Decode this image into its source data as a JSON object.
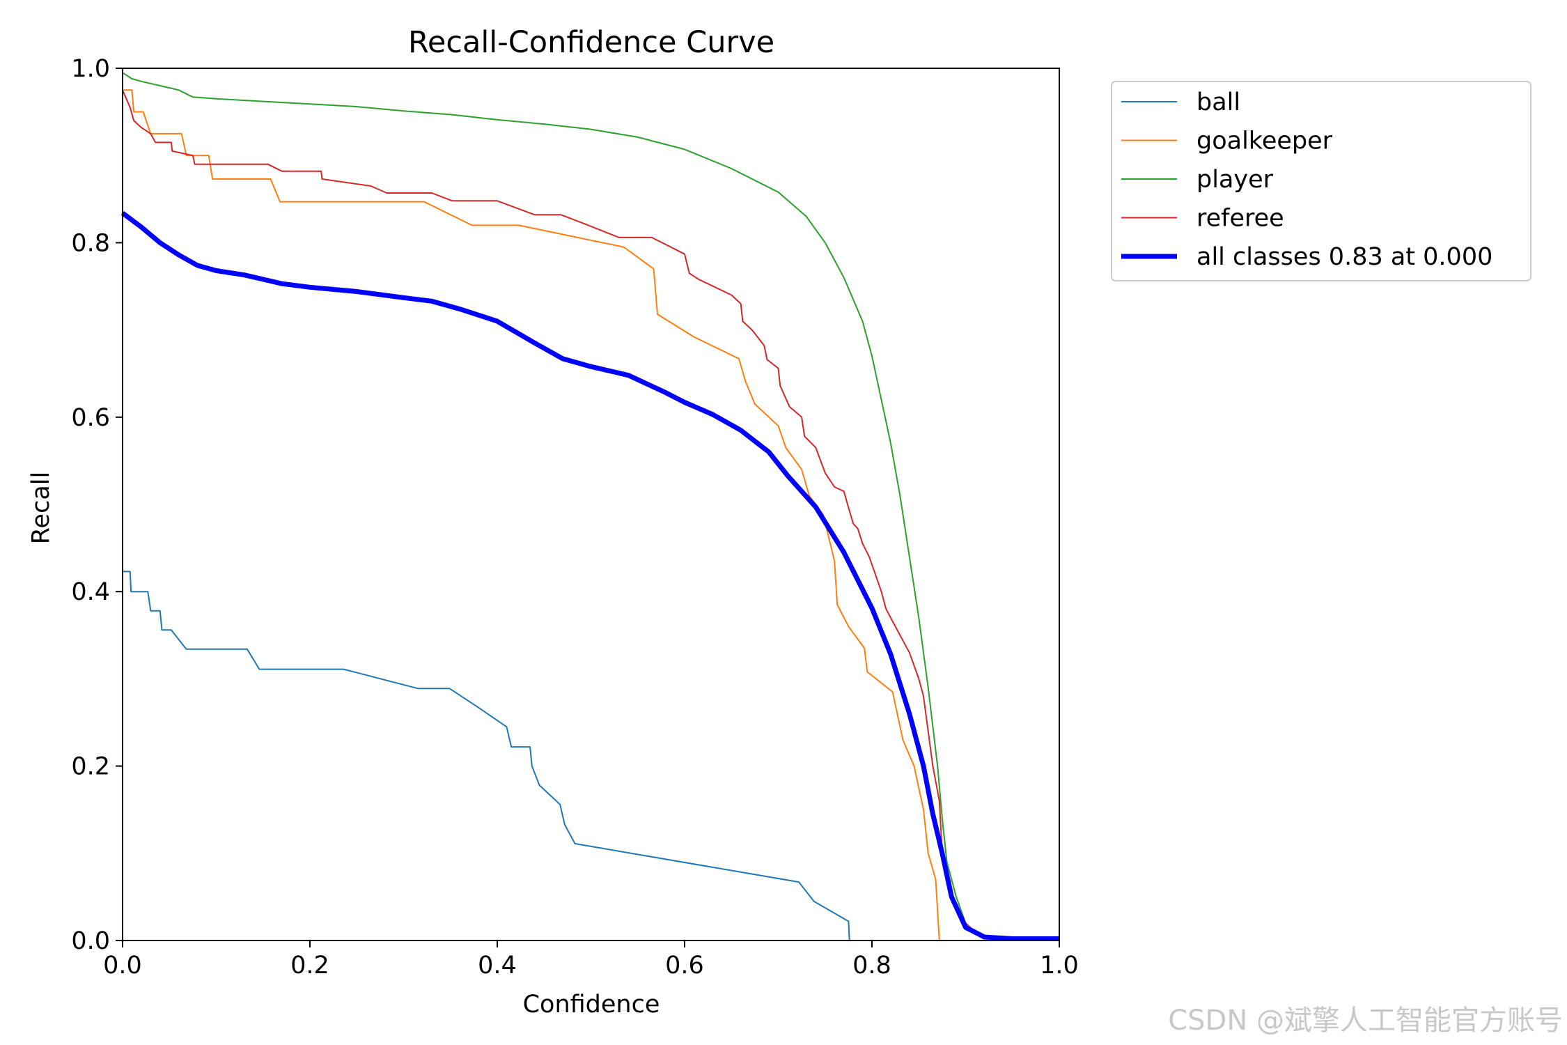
{
  "chart_data": {
    "type": "line",
    "title": "Recall-Confidence Curve",
    "xlabel": "Confidence",
    "ylabel": "Recall",
    "xlim": [
      0,
      1
    ],
    "ylim": [
      0,
      1
    ],
    "xticks": [
      "0.0",
      "0.2",
      "0.4",
      "0.6",
      "0.8",
      "1.0"
    ],
    "yticks": [
      "0.0",
      "0.2",
      "0.4",
      "0.6",
      "0.8",
      "1.0"
    ],
    "grid": false,
    "legend_position": "outside-top-right",
    "series": [
      {
        "name": "ball",
        "color": "#1f77b4",
        "width": 2,
        "points": [
          [
            0,
            0.423
          ],
          [
            0.008,
            0.423
          ],
          [
            0.009,
            0.4
          ],
          [
            0.027,
            0.4
          ],
          [
            0.03,
            0.378
          ],
          [
            0.04,
            0.378
          ],
          [
            0.042,
            0.356
          ],
          [
            0.052,
            0.356
          ],
          [
            0.068,
            0.334
          ],
          [
            0.133,
            0.334
          ],
          [
            0.146,
            0.311
          ],
          [
            0.236,
            0.311
          ],
          [
            0.315,
            0.289
          ],
          [
            0.349,
            0.289
          ],
          [
            0.38,
            0.267
          ],
          [
            0.41,
            0.245
          ],
          [
            0.415,
            0.222
          ],
          [
            0.435,
            0.222
          ],
          [
            0.437,
            0.2
          ],
          [
            0.445,
            0.178
          ],
          [
            0.467,
            0.156
          ],
          [
            0.472,
            0.133
          ],
          [
            0.483,
            0.111
          ],
          [
            0.722,
            0.067
          ],
          [
            0.738,
            0.045
          ],
          [
            0.775,
            0.022
          ],
          [
            0.776,
            0
          ],
          [
            1,
            0
          ]
        ]
      },
      {
        "name": "goalkeeper",
        "color": "#ff7f0e",
        "width": 2,
        "points": [
          [
            0,
            0.975
          ],
          [
            0.01,
            0.975
          ],
          [
            0.012,
            0.95
          ],
          [
            0.022,
            0.95
          ],
          [
            0.03,
            0.925
          ],
          [
            0.063,
            0.925
          ],
          [
            0.068,
            0.9
          ],
          [
            0.092,
            0.9
          ],
          [
            0.096,
            0.873
          ],
          [
            0.158,
            0.873
          ],
          [
            0.168,
            0.847
          ],
          [
            0.322,
            0.847
          ],
          [
            0.373,
            0.82
          ],
          [
            0.423,
            0.82
          ],
          [
            0.535,
            0.795
          ],
          [
            0.567,
            0.77
          ],
          [
            0.571,
            0.718
          ],
          [
            0.61,
            0.692
          ],
          [
            0.658,
            0.667
          ],
          [
            0.665,
            0.641
          ],
          [
            0.675,
            0.615
          ],
          [
            0.7,
            0.59
          ],
          [
            0.708,
            0.565
          ],
          [
            0.725,
            0.54
          ],
          [
            0.733,
            0.51
          ],
          [
            0.748,
            0.488
          ],
          [
            0.76,
            0.435
          ],
          [
            0.763,
            0.385
          ],
          [
            0.775,
            0.36
          ],
          [
            0.792,
            0.335
          ],
          [
            0.795,
            0.308
          ],
          [
            0.822,
            0.285
          ],
          [
            0.833,
            0.23
          ],
          [
            0.845,
            0.2
          ],
          [
            0.855,
            0.15
          ],
          [
            0.86,
            0.1
          ],
          [
            0.868,
            0.07
          ],
          [
            0.872,
            0
          ],
          [
            1,
            0
          ]
        ]
      },
      {
        "name": "player",
        "color": "#2ca02c",
        "width": 2,
        "points": [
          [
            0,
            0.995
          ],
          [
            0.01,
            0.988
          ],
          [
            0.02,
            0.985
          ],
          [
            0.04,
            0.98
          ],
          [
            0.06,
            0.975
          ],
          [
            0.075,
            0.967
          ],
          [
            0.1,
            0.965
          ],
          [
            0.15,
            0.962
          ],
          [
            0.2,
            0.959
          ],
          [
            0.25,
            0.956
          ],
          [
            0.3,
            0.951
          ],
          [
            0.35,
            0.947
          ],
          [
            0.4,
            0.941
          ],
          [
            0.45,
            0.936
          ],
          [
            0.5,
            0.93
          ],
          [
            0.55,
            0.921
          ],
          [
            0.6,
            0.907
          ],
          [
            0.65,
            0.885
          ],
          [
            0.7,
            0.858
          ],
          [
            0.73,
            0.83
          ],
          [
            0.75,
            0.8
          ],
          [
            0.77,
            0.76
          ],
          [
            0.79,
            0.71
          ],
          [
            0.8,
            0.67
          ],
          [
            0.81,
            0.62
          ],
          [
            0.82,
            0.57
          ],
          [
            0.83,
            0.51
          ],
          [
            0.84,
            0.44
          ],
          [
            0.85,
            0.37
          ],
          [
            0.86,
            0.29
          ],
          [
            0.87,
            0.2
          ],
          [
            0.875,
            0.14
          ],
          [
            0.88,
            0.09
          ],
          [
            0.89,
            0.05
          ],
          [
            0.9,
            0.02
          ],
          [
            0.91,
            0.007
          ],
          [
            0.93,
            0.002
          ],
          [
            1,
            0.002
          ]
        ]
      },
      {
        "name": "referee",
        "color": "#d62728",
        "width": 2,
        "points": [
          [
            0,
            0.975
          ],
          [
            0.008,
            0.955
          ],
          [
            0.012,
            0.94
          ],
          [
            0.02,
            0.932
          ],
          [
            0.03,
            0.925
          ],
          [
            0.035,
            0.915
          ],
          [
            0.052,
            0.915
          ],
          [
            0.053,
            0.905
          ],
          [
            0.075,
            0.9
          ],
          [
            0.077,
            0.89
          ],
          [
            0.155,
            0.89
          ],
          [
            0.17,
            0.882
          ],
          [
            0.212,
            0.882
          ],
          [
            0.213,
            0.873
          ],
          [
            0.265,
            0.865
          ],
          [
            0.282,
            0.857
          ],
          [
            0.33,
            0.857
          ],
          [
            0.352,
            0.848
          ],
          [
            0.4,
            0.848
          ],
          [
            0.44,
            0.832
          ],
          [
            0.468,
            0.832
          ],
          [
            0.49,
            0.823
          ],
          [
            0.53,
            0.806
          ],
          [
            0.565,
            0.806
          ],
          [
            0.6,
            0.787
          ],
          [
            0.605,
            0.765
          ],
          [
            0.615,
            0.758
          ],
          [
            0.65,
            0.74
          ],
          [
            0.66,
            0.73
          ],
          [
            0.662,
            0.71
          ],
          [
            0.672,
            0.7
          ],
          [
            0.685,
            0.682
          ],
          [
            0.688,
            0.666
          ],
          [
            0.7,
            0.656
          ],
          [
            0.702,
            0.636
          ],
          [
            0.712,
            0.612
          ],
          [
            0.725,
            0.6
          ],
          [
            0.728,
            0.578
          ],
          [
            0.74,
            0.565
          ],
          [
            0.75,
            0.536
          ],
          [
            0.755,
            0.528
          ],
          [
            0.76,
            0.52
          ],
          [
            0.77,
            0.515
          ],
          [
            0.775,
            0.496
          ],
          [
            0.78,
            0.478
          ],
          [
            0.785,
            0.472
          ],
          [
            0.79,
            0.455
          ],
          [
            0.797,
            0.44
          ],
          [
            0.81,
            0.4
          ],
          [
            0.815,
            0.38
          ],
          [
            0.83,
            0.35
          ],
          [
            0.84,
            0.33
          ],
          [
            0.85,
            0.3
          ],
          [
            0.855,
            0.28
          ],
          [
            0.86,
            0.24
          ],
          [
            0.865,
            0.2
          ],
          [
            0.872,
            0.16
          ],
          [
            0.875,
            0.1
          ],
          [
            0.88,
            0.07
          ],
          [
            0.89,
            0.035
          ],
          [
            0.9,
            0.02
          ],
          [
            0.91,
            0.01
          ],
          [
            0.92,
            0.003
          ],
          [
            1,
            0.003
          ]
        ]
      },
      {
        "name": "all classes 0.83 at 0.000",
        "color": "#0000ff",
        "width": 7,
        "points": [
          [
            0,
            0.834
          ],
          [
            0.02,
            0.818
          ],
          [
            0.04,
            0.8
          ],
          [
            0.06,
            0.786
          ],
          [
            0.08,
            0.774
          ],
          [
            0.1,
            0.768
          ],
          [
            0.13,
            0.763
          ],
          [
            0.17,
            0.753
          ],
          [
            0.2,
            0.749
          ],
          [
            0.25,
            0.744
          ],
          [
            0.3,
            0.737
          ],
          [
            0.33,
            0.733
          ],
          [
            0.36,
            0.724
          ],
          [
            0.4,
            0.71
          ],
          [
            0.44,
            0.685
          ],
          [
            0.47,
            0.667
          ],
          [
            0.5,
            0.658
          ],
          [
            0.54,
            0.648
          ],
          [
            0.58,
            0.628
          ],
          [
            0.6,
            0.617
          ],
          [
            0.63,
            0.603
          ],
          [
            0.66,
            0.585
          ],
          [
            0.69,
            0.56
          ],
          [
            0.71,
            0.533
          ],
          [
            0.74,
            0.497
          ],
          [
            0.77,
            0.445
          ],
          [
            0.8,
            0.381
          ],
          [
            0.82,
            0.328
          ],
          [
            0.84,
            0.26
          ],
          [
            0.855,
            0.2
          ],
          [
            0.865,
            0.145
          ],
          [
            0.875,
            0.1
          ],
          [
            0.885,
            0.05
          ],
          [
            0.9,
            0.015
          ],
          [
            0.92,
            0.004
          ],
          [
            0.95,
            0.002
          ],
          [
            1,
            0.002
          ]
        ]
      }
    ]
  },
  "watermark": "CSDN @斌擎人工智能官方账号"
}
